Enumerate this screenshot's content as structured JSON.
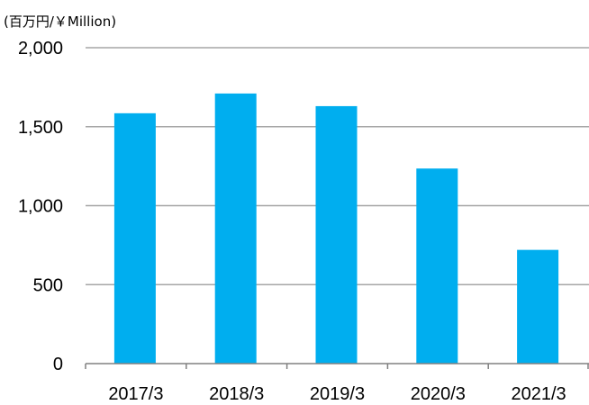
{
  "chart_data": {
    "type": "bar",
    "unit_label": "(百万円/￥Million)",
    "categories": [
      "2017/3",
      "2018/3",
      "2019/3",
      "2020/3",
      "2021/3"
    ],
    "values": [
      1585,
      1710,
      1630,
      1235,
      720
    ],
    "y_ticks": [
      "0",
      "500",
      "1,000",
      "1,500",
      "2,000"
    ],
    "ylim": [
      0,
      2000
    ],
    "grid": true,
    "legend": "none",
    "bar_color": "#00AEEF",
    "grid_color": "#A6A6A6",
    "axis_color": "#808080"
  }
}
